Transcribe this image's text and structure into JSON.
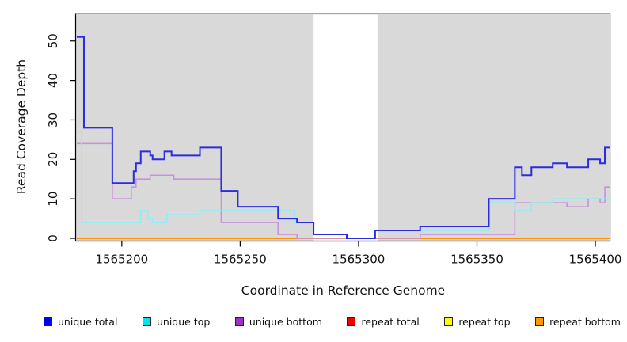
{
  "chart_data": {
    "type": "line",
    "line_style": "step",
    "title": "",
    "xlabel": "Coordinate in Reference Genome",
    "ylabel": "Read Coverage Depth",
    "x_ticks": [
      1565200,
      1565250,
      1565300,
      1565350,
      1565400
    ],
    "y_ticks": [
      0,
      10,
      20,
      30,
      40,
      50
    ],
    "x_range": [
      1565181,
      1565406
    ],
    "y_range": [
      0,
      57
    ],
    "grid": "off",
    "plot_background": "#d9d9d9",
    "no_data_band": {
      "start": 1565281,
      "end": 1565308,
      "color": "#ffffff"
    },
    "series": [
      {
        "name": "repeat top",
        "color": "#ffff4d",
        "width": 1.6,
        "segments": [
          [
            1565181,
            1565406,
            0
          ]
        ]
      },
      {
        "name": "repeat total",
        "color": "#dd2222",
        "width": 1.6,
        "segments": [
          [
            1565181,
            1565406,
            0
          ]
        ]
      },
      {
        "name": "repeat bottom",
        "color": "#ff9100",
        "width": 2,
        "segments": [
          [
            1565181,
            1565406,
            0
          ]
        ]
      },
      {
        "name": "unique bottom",
        "color": "#c792dc",
        "width": 1.6,
        "segments": [
          [
            1565181,
            1565196,
            24
          ],
          [
            1565196,
            1565204,
            10
          ],
          [
            1565204,
            1565206,
            13
          ],
          [
            1565206,
            1565212,
            15
          ],
          [
            1565212,
            1565222,
            16
          ],
          [
            1565222,
            1565242,
            15
          ],
          [
            1565242,
            1565266,
            4
          ],
          [
            1565266,
            1565274,
            1
          ],
          [
            1565274,
            1565326,
            0
          ],
          [
            1565326,
            1565366,
            1
          ],
          [
            1565366,
            1565388,
            9
          ],
          [
            1565388,
            1565397,
            8
          ],
          [
            1565397,
            1565402,
            10
          ],
          [
            1565402,
            1565404,
            9
          ],
          [
            1565404,
            1565406,
            13
          ]
        ]
      },
      {
        "name": "unique top",
        "color": "#8deef4",
        "width": 1.6,
        "segments": [
          [
            1565181,
            1565183,
            27
          ],
          [
            1565183,
            1565208,
            4
          ],
          [
            1565208,
            1565211,
            7
          ],
          [
            1565211,
            1565213,
            5
          ],
          [
            1565213,
            1565219,
            4
          ],
          [
            1565219,
            1565233,
            6
          ],
          [
            1565233,
            1565273,
            7
          ],
          [
            1565273,
            1565281,
            4
          ],
          [
            1565281,
            1565295,
            1
          ],
          [
            1565295,
            1565307,
            0
          ],
          [
            1565307,
            1565355,
            2
          ],
          [
            1565355,
            1565366,
            9
          ],
          [
            1565366,
            1565373,
            7
          ],
          [
            1565373,
            1565382,
            9
          ],
          [
            1565382,
            1565406,
            10
          ]
        ]
      },
      {
        "name": "unique total",
        "color": "#2b2be0",
        "width": 2,
        "segments": [
          [
            1565181,
            1565184,
            51
          ],
          [
            1565184,
            1565196,
            28
          ],
          [
            1565196,
            1565205,
            14
          ],
          [
            1565205,
            1565206,
            17
          ],
          [
            1565206,
            1565208,
            19
          ],
          [
            1565208,
            1565212,
            22
          ],
          [
            1565212,
            1565213,
            21
          ],
          [
            1565213,
            1565218,
            20
          ],
          [
            1565218,
            1565221,
            22
          ],
          [
            1565221,
            1565233,
            21
          ],
          [
            1565233,
            1565242,
            23
          ],
          [
            1565242,
            1565249,
            12
          ],
          [
            1565249,
            1565266,
            8
          ],
          [
            1565266,
            1565274,
            5
          ],
          [
            1565274,
            1565281,
            4
          ],
          [
            1565281,
            1565295,
            1
          ],
          [
            1565295,
            1565307,
            0
          ],
          [
            1565307,
            1565326,
            2
          ],
          [
            1565326,
            1565355,
            3
          ],
          [
            1565355,
            1565366,
            10
          ],
          [
            1565366,
            1565369,
            18
          ],
          [
            1565369,
            1565373,
            16
          ],
          [
            1565373,
            1565382,
            18
          ],
          [
            1565382,
            1565388,
            19
          ],
          [
            1565388,
            1565397,
            18
          ],
          [
            1565397,
            1565402,
            20
          ],
          [
            1565402,
            1565404,
            19
          ],
          [
            1565404,
            1565406,
            23
          ]
        ]
      }
    ]
  },
  "legend": {
    "items": [
      {
        "label": "unique total",
        "swatch_color": "#0000e5"
      },
      {
        "label": "unique top",
        "swatch_color": "#00e5ee"
      },
      {
        "label": "unique bottom",
        "swatch_color": "#9932cc"
      },
      {
        "label": "repeat total",
        "swatch_color": "#ee0000"
      },
      {
        "label": "repeat top",
        "swatch_color": "#ffff00"
      },
      {
        "label": "repeat bottom",
        "swatch_color": "#ff9900"
      }
    ]
  }
}
